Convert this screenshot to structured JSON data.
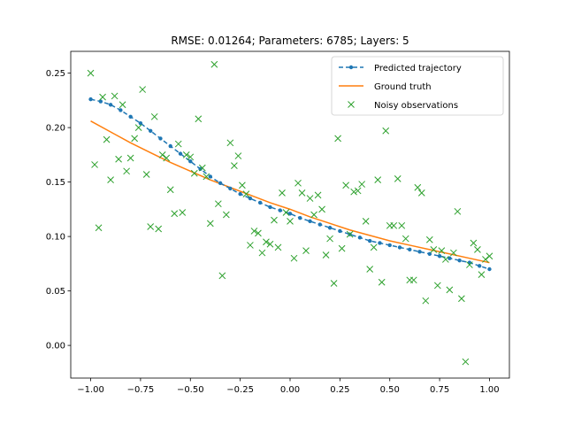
{
  "chart_data": {
    "type": "scatter",
    "title": "RMSE: 0.01264; Parameters: 6785; Layers: 5",
    "xlabel": "",
    "ylabel": "",
    "xlim": [
      -1.1,
      1.1
    ],
    "ylim": [
      -0.03,
      0.27
    ],
    "xticks": [
      -1.0,
      -0.75,
      -0.5,
      -0.25,
      0.0,
      0.25,
      0.5,
      0.75,
      1.0
    ],
    "xtick_labels": [
      "−1.00",
      "−0.75",
      "−0.50",
      "−0.25",
      "0.00",
      "0.25",
      "0.50",
      "0.75",
      "1.00"
    ],
    "yticks": [
      0.0,
      0.05,
      0.1,
      0.15,
      0.2,
      0.25
    ],
    "ytick_labels": [
      "0.00",
      "0.05",
      "0.10",
      "0.15",
      "0.20",
      "0.25"
    ],
    "grid": false,
    "legend": {
      "position": "top-right"
    },
    "colors": {
      "predicted": "#1f77b4",
      "truth": "#ff7f0e",
      "noisy": "#2ca02c"
    },
    "series": [
      {
        "name": "Predicted trajectory",
        "style": "dashed-dots",
        "x": [
          -1.0,
          -0.95,
          -0.9,
          -0.85,
          -0.8,
          -0.75,
          -0.7,
          -0.65,
          -0.6,
          -0.55,
          -0.5,
          -0.45,
          -0.4,
          -0.35,
          -0.3,
          -0.25,
          -0.2,
          -0.15,
          -0.1,
          -0.05,
          0.0,
          0.05,
          0.1,
          0.15,
          0.2,
          0.25,
          0.3,
          0.35,
          0.4,
          0.45,
          0.5,
          0.55,
          0.6,
          0.65,
          0.7,
          0.75,
          0.8,
          0.85,
          0.9,
          0.95,
          1.0
        ],
        "y": [
          0.226,
          0.224,
          0.221,
          0.216,
          0.21,
          0.204,
          0.197,
          0.19,
          0.183,
          0.176,
          0.169,
          0.162,
          0.155,
          0.149,
          0.144,
          0.139,
          0.135,
          0.131,
          0.127,
          0.124,
          0.121,
          0.117,
          0.114,
          0.111,
          0.108,
          0.105,
          0.102,
          0.099,
          0.096,
          0.094,
          0.092,
          0.09,
          0.088,
          0.086,
          0.084,
          0.082,
          0.08,
          0.078,
          0.076,
          0.073,
          0.07
        ]
      },
      {
        "name": "Ground truth",
        "style": "line",
        "x": [
          -1.0,
          -0.9,
          -0.8,
          -0.7,
          -0.6,
          -0.5,
          -0.4,
          -0.3,
          -0.2,
          -0.1,
          0.0,
          0.1,
          0.2,
          0.3,
          0.4,
          0.5,
          0.6,
          0.7,
          0.8,
          0.9,
          1.0
        ],
        "y": [
          0.206,
          0.196,
          0.186,
          0.177,
          0.168,
          0.16,
          0.152,
          0.145,
          0.138,
          0.131,
          0.125,
          0.118,
          0.112,
          0.106,
          0.101,
          0.096,
          0.092,
          0.088,
          0.084,
          0.08,
          0.076
        ]
      },
      {
        "name": "Noisy observations",
        "style": "x-markers",
        "x": [
          -1.0,
          -0.98,
          -0.96,
          -0.94,
          -0.92,
          -0.9,
          -0.88,
          -0.86,
          -0.84,
          -0.82,
          -0.8,
          -0.78,
          -0.76,
          -0.74,
          -0.72,
          -0.7,
          -0.68,
          -0.66,
          -0.64,
          -0.62,
          -0.6,
          -0.58,
          -0.56,
          -0.54,
          -0.52,
          -0.5,
          -0.48,
          -0.46,
          -0.44,
          -0.42,
          -0.4,
          -0.38,
          -0.36,
          -0.34,
          -0.32,
          -0.3,
          -0.28,
          -0.26,
          -0.24,
          -0.22,
          -0.2,
          -0.18,
          -0.16,
          -0.14,
          -0.12,
          -0.1,
          -0.08,
          -0.06,
          -0.04,
          -0.02,
          0.0,
          0.02,
          0.04,
          0.06,
          0.08,
          0.1,
          0.12,
          0.14,
          0.16,
          0.18,
          0.2,
          0.22,
          0.24,
          0.26,
          0.28,
          0.3,
          0.32,
          0.34,
          0.36,
          0.38,
          0.4,
          0.42,
          0.44,
          0.46,
          0.48,
          0.5,
          0.52,
          0.54,
          0.56,
          0.58,
          0.6,
          0.62,
          0.64,
          0.66,
          0.68,
          0.7,
          0.72,
          0.74,
          0.76,
          0.78,
          0.8,
          0.82,
          0.84,
          0.86,
          0.88,
          0.9,
          0.92,
          0.94,
          0.96,
          0.98,
          1.0
        ],
        "y": [
          0.25,
          0.166,
          0.108,
          0.228,
          0.189,
          0.152,
          0.229,
          0.171,
          0.221,
          0.16,
          0.172,
          0.19,
          0.2,
          0.235,
          0.157,
          0.109,
          0.21,
          0.107,
          0.175,
          0.172,
          0.143,
          0.121,
          0.185,
          0.122,
          0.175,
          0.173,
          0.158,
          0.208,
          0.163,
          0.155,
          0.112,
          0.258,
          0.13,
          0.064,
          0.12,
          0.186,
          0.165,
          0.174,
          0.147,
          0.139,
          0.092,
          0.105,
          0.103,
          0.085,
          0.095,
          0.093,
          0.115,
          0.09,
          0.14,
          0.122,
          0.114,
          0.08,
          0.149,
          0.14,
          0.087,
          0.135,
          0.12,
          0.138,
          0.125,
          0.083,
          0.098,
          0.057,
          0.19,
          0.089,
          0.147,
          0.102,
          0.141,
          0.142,
          0.148,
          0.114,
          0.07,
          0.09,
          0.152,
          0.058,
          0.197,
          0.11,
          0.11,
          0.153,
          0.11,
          0.098,
          0.06,
          0.06,
          0.145,
          0.14,
          0.041,
          0.097,
          0.088,
          0.055,
          0.087,
          0.079,
          0.051,
          0.085,
          0.123,
          0.043,
          -0.015,
          0.074,
          0.094,
          0.088,
          0.065,
          0.079,
          0.082
        ]
      }
    ]
  }
}
